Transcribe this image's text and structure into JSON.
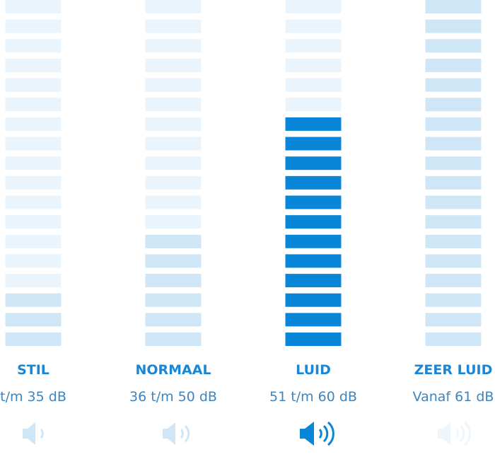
{
  "levels": [
    {
      "label": "STIL",
      "range": "t/m 35 dB"
    },
    {
      "label": "NORMAAL",
      "range": "36 t/m 50 dB"
    },
    {
      "label": "LUID",
      "range": "51 t/m 60 dB"
    },
    {
      "label": "ZEER LUID",
      "range": "Vanaf 61 dB"
    }
  ]
}
